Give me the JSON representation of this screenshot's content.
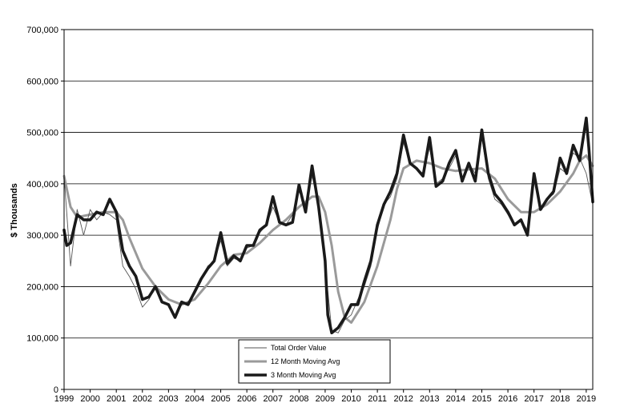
{
  "chart_data": {
    "type": "line",
    "ylabel": "$ Thousands",
    "ylim": [
      0,
      700000
    ],
    "yticks": [
      0,
      100000,
      200000,
      300000,
      400000,
      500000,
      600000,
      700000
    ],
    "ytick_labels": [
      "0",
      "100,000",
      "200,000",
      "300,000",
      "400,000",
      "500,000",
      "600,000",
      "700,000"
    ],
    "xlim": [
      1999,
      2019.25
    ],
    "xticks": [
      1999,
      2000,
      2001,
      2002,
      2003,
      2004,
      2005,
      2006,
      2007,
      2008,
      2009,
      2010,
      2011,
      2012,
      2013,
      2014,
      2015,
      2016,
      2017,
      2018,
      2019
    ],
    "xtick_labels": [
      "1999",
      "2000",
      "2001",
      "2002",
      "2003",
      "2004",
      "2005",
      "2006",
      "2007",
      "2008",
      "2009",
      "2010",
      "2011",
      "2012",
      "2013",
      "2014",
      "2015",
      "2016",
      "2017",
      "2018",
      "2019"
    ],
    "grid": "horizontal",
    "legend_position": "bottom-center",
    "series": [
      {
        "name": "Total Order Value",
        "style": "thin",
        "color": "#555555",
        "points": [
          [
            1999.0,
            415000
          ],
          [
            1999.25,
            240000
          ],
          [
            1999.5,
            350000
          ],
          [
            1999.75,
            300000
          ],
          [
            2000.0,
            350000
          ],
          [
            2000.25,
            330000
          ],
          [
            2000.5,
            345000
          ],
          [
            2000.75,
            340000
          ],
          [
            2001.0,
            330000
          ],
          [
            2001.25,
            240000
          ],
          [
            2001.5,
            220000
          ],
          [
            2001.75,
            195000
          ],
          [
            2002.0,
            160000
          ],
          [
            2002.25,
            175000
          ],
          [
            2002.5,
            200000
          ],
          [
            2002.75,
            170000
          ],
          [
            2003.0,
            165000
          ],
          [
            2003.25,
            140000
          ],
          [
            2003.5,
            165000
          ],
          [
            2003.75,
            170000
          ],
          [
            2004.0,
            185000
          ],
          [
            2004.25,
            210000
          ],
          [
            2004.5,
            240000
          ],
          [
            2004.75,
            250000
          ],
          [
            2005.0,
            290000
          ],
          [
            2005.25,
            240000
          ],
          [
            2005.5,
            255000
          ],
          [
            2005.75,
            250000
          ],
          [
            2006.0,
            275000
          ],
          [
            2006.25,
            280000
          ],
          [
            2006.5,
            305000
          ],
          [
            2006.75,
            320000
          ],
          [
            2007.0,
            355000
          ],
          [
            2007.25,
            325000
          ],
          [
            2007.5,
            320000
          ],
          [
            2007.75,
            340000
          ],
          [
            2008.0,
            385000
          ],
          [
            2008.25,
            360000
          ],
          [
            2008.5,
            415000
          ],
          [
            2008.75,
            360000
          ],
          [
            2009.0,
            245000
          ],
          [
            2009.25,
            115000
          ],
          [
            2009.5,
            110000
          ],
          [
            2009.75,
            135000
          ],
          [
            2010.0,
            145000
          ],
          [
            2010.25,
            175000
          ],
          [
            2010.5,
            200000
          ],
          [
            2010.75,
            240000
          ],
          [
            2011.0,
            310000
          ],
          [
            2011.25,
            360000
          ],
          [
            2011.5,
            375000
          ],
          [
            2011.75,
            410000
          ],
          [
            2012.0,
            480000
          ],
          [
            2012.25,
            440000
          ],
          [
            2012.5,
            430000
          ],
          [
            2012.75,
            420000
          ],
          [
            2013.0,
            470000
          ],
          [
            2013.25,
            400000
          ],
          [
            2013.5,
            410000
          ],
          [
            2013.75,
            430000
          ],
          [
            2014.0,
            455000
          ],
          [
            2014.25,
            410000
          ],
          [
            2014.5,
            440000
          ],
          [
            2014.75,
            420000
          ],
          [
            2015.0,
            490000
          ],
          [
            2015.25,
            410000
          ],
          [
            2015.5,
            370000
          ],
          [
            2015.75,
            360000
          ],
          [
            2016.0,
            340000
          ],
          [
            2016.25,
            320000
          ],
          [
            2016.5,
            330000
          ],
          [
            2016.75,
            310000
          ],
          [
            2017.0,
            410000
          ],
          [
            2017.25,
            350000
          ],
          [
            2017.5,
            370000
          ],
          [
            2017.75,
            380000
          ],
          [
            2018.0,
            430000
          ],
          [
            2018.25,
            420000
          ],
          [
            2018.5,
            460000
          ],
          [
            2018.75,
            450000
          ],
          [
            2019.0,
            420000
          ],
          [
            2019.25,
            360000
          ]
        ]
      },
      {
        "name": "12 Month Moving Avg",
        "style": "medium",
        "color": "#9a9a9a",
        "points": [
          [
            1999.0,
            415000
          ],
          [
            1999.25,
            355000
          ],
          [
            1999.5,
            335000
          ],
          [
            2000.0,
            340000
          ],
          [
            2000.5,
            345000
          ],
          [
            2001.0,
            345000
          ],
          [
            2001.25,
            330000
          ],
          [
            2001.5,
            295000
          ],
          [
            2002.0,
            235000
          ],
          [
            2002.5,
            200000
          ],
          [
            2003.0,
            175000
          ],
          [
            2003.5,
            165000
          ],
          [
            2004.0,
            175000
          ],
          [
            2004.5,
            205000
          ],
          [
            2005.0,
            240000
          ],
          [
            2005.5,
            262000
          ],
          [
            2006.0,
            265000
          ],
          [
            2006.5,
            285000
          ],
          [
            2007.0,
            310000
          ],
          [
            2007.5,
            330000
          ],
          [
            2008.0,
            355000
          ],
          [
            2008.5,
            375000
          ],
          [
            2008.75,
            375000
          ],
          [
            2009.0,
            345000
          ],
          [
            2009.25,
            280000
          ],
          [
            2009.5,
            190000
          ],
          [
            2009.75,
            140000
          ],
          [
            2010.0,
            130000
          ],
          [
            2010.5,
            170000
          ],
          [
            2011.0,
            240000
          ],
          [
            2011.5,
            330000
          ],
          [
            2011.75,
            390000
          ],
          [
            2012.0,
            430000
          ],
          [
            2012.5,
            445000
          ],
          [
            2013.0,
            440000
          ],
          [
            2013.5,
            430000
          ],
          [
            2014.0,
            425000
          ],
          [
            2014.5,
            428000
          ],
          [
            2015.0,
            430000
          ],
          [
            2015.5,
            410000
          ],
          [
            2016.0,
            370000
          ],
          [
            2016.5,
            345000
          ],
          [
            2017.0,
            345000
          ],
          [
            2017.5,
            360000
          ],
          [
            2018.0,
            385000
          ],
          [
            2018.5,
            420000
          ],
          [
            2018.75,
            445000
          ],
          [
            2019.0,
            455000
          ],
          [
            2019.25,
            435000
          ]
        ]
      },
      {
        "name": "3 Month Moving Avg",
        "style": "thick",
        "color": "#1a1a1a",
        "points": [
          [
            1999.0,
            310000
          ],
          [
            1999.1,
            280000
          ],
          [
            1999.25,
            285000
          ],
          [
            1999.5,
            340000
          ],
          [
            1999.75,
            330000
          ],
          [
            2000.0,
            330000
          ],
          [
            2000.25,
            345000
          ],
          [
            2000.5,
            340000
          ],
          [
            2000.75,
            370000
          ],
          [
            2001.0,
            345000
          ],
          [
            2001.25,
            270000
          ],
          [
            2001.5,
            240000
          ],
          [
            2001.75,
            220000
          ],
          [
            2002.0,
            175000
          ],
          [
            2002.25,
            180000
          ],
          [
            2002.5,
            200000
          ],
          [
            2002.75,
            170000
          ],
          [
            2003.0,
            165000
          ],
          [
            2003.25,
            140000
          ],
          [
            2003.5,
            170000
          ],
          [
            2003.75,
            165000
          ],
          [
            2004.0,
            190000
          ],
          [
            2004.25,
            215000
          ],
          [
            2004.5,
            235000
          ],
          [
            2004.75,
            250000
          ],
          [
            2005.0,
            305000
          ],
          [
            2005.25,
            245000
          ],
          [
            2005.5,
            260000
          ],
          [
            2005.75,
            250000
          ],
          [
            2006.0,
            280000
          ],
          [
            2006.25,
            280000
          ],
          [
            2006.5,
            310000
          ],
          [
            2006.75,
            320000
          ],
          [
            2007.0,
            375000
          ],
          [
            2007.25,
            325000
          ],
          [
            2007.5,
            320000
          ],
          [
            2007.75,
            325000
          ],
          [
            2008.0,
            398000
          ],
          [
            2008.25,
            345000
          ],
          [
            2008.5,
            435000
          ],
          [
            2008.75,
            355000
          ],
          [
            2009.0,
            250000
          ],
          [
            2009.1,
            145000
          ],
          [
            2009.25,
            110000
          ],
          [
            2009.5,
            120000
          ],
          [
            2009.75,
            140000
          ],
          [
            2010.0,
            165000
          ],
          [
            2010.25,
            165000
          ],
          [
            2010.5,
            210000
          ],
          [
            2010.75,
            250000
          ],
          [
            2011.0,
            320000
          ],
          [
            2011.25,
            360000
          ],
          [
            2011.5,
            385000
          ],
          [
            2011.75,
            420000
          ],
          [
            2012.0,
            495000
          ],
          [
            2012.25,
            440000
          ],
          [
            2012.5,
            430000
          ],
          [
            2012.75,
            415000
          ],
          [
            2013.0,
            490000
          ],
          [
            2013.25,
            395000
          ],
          [
            2013.5,
            405000
          ],
          [
            2013.75,
            440000
          ],
          [
            2014.0,
            465000
          ],
          [
            2014.25,
            405000
          ],
          [
            2014.5,
            440000
          ],
          [
            2014.75,
            405000
          ],
          [
            2015.0,
            505000
          ],
          [
            2015.25,
            420000
          ],
          [
            2015.5,
            380000
          ],
          [
            2015.75,
            365000
          ],
          [
            2016.0,
            345000
          ],
          [
            2016.25,
            320000
          ],
          [
            2016.5,
            330000
          ],
          [
            2016.75,
            300000
          ],
          [
            2017.0,
            420000
          ],
          [
            2017.25,
            350000
          ],
          [
            2017.5,
            370000
          ],
          [
            2017.75,
            385000
          ],
          [
            2018.0,
            450000
          ],
          [
            2018.25,
            420000
          ],
          [
            2018.5,
            475000
          ],
          [
            2018.75,
            445000
          ],
          [
            2019.0,
            528000
          ],
          [
            2019.1,
            470000
          ],
          [
            2019.25,
            365000
          ]
        ]
      }
    ]
  }
}
